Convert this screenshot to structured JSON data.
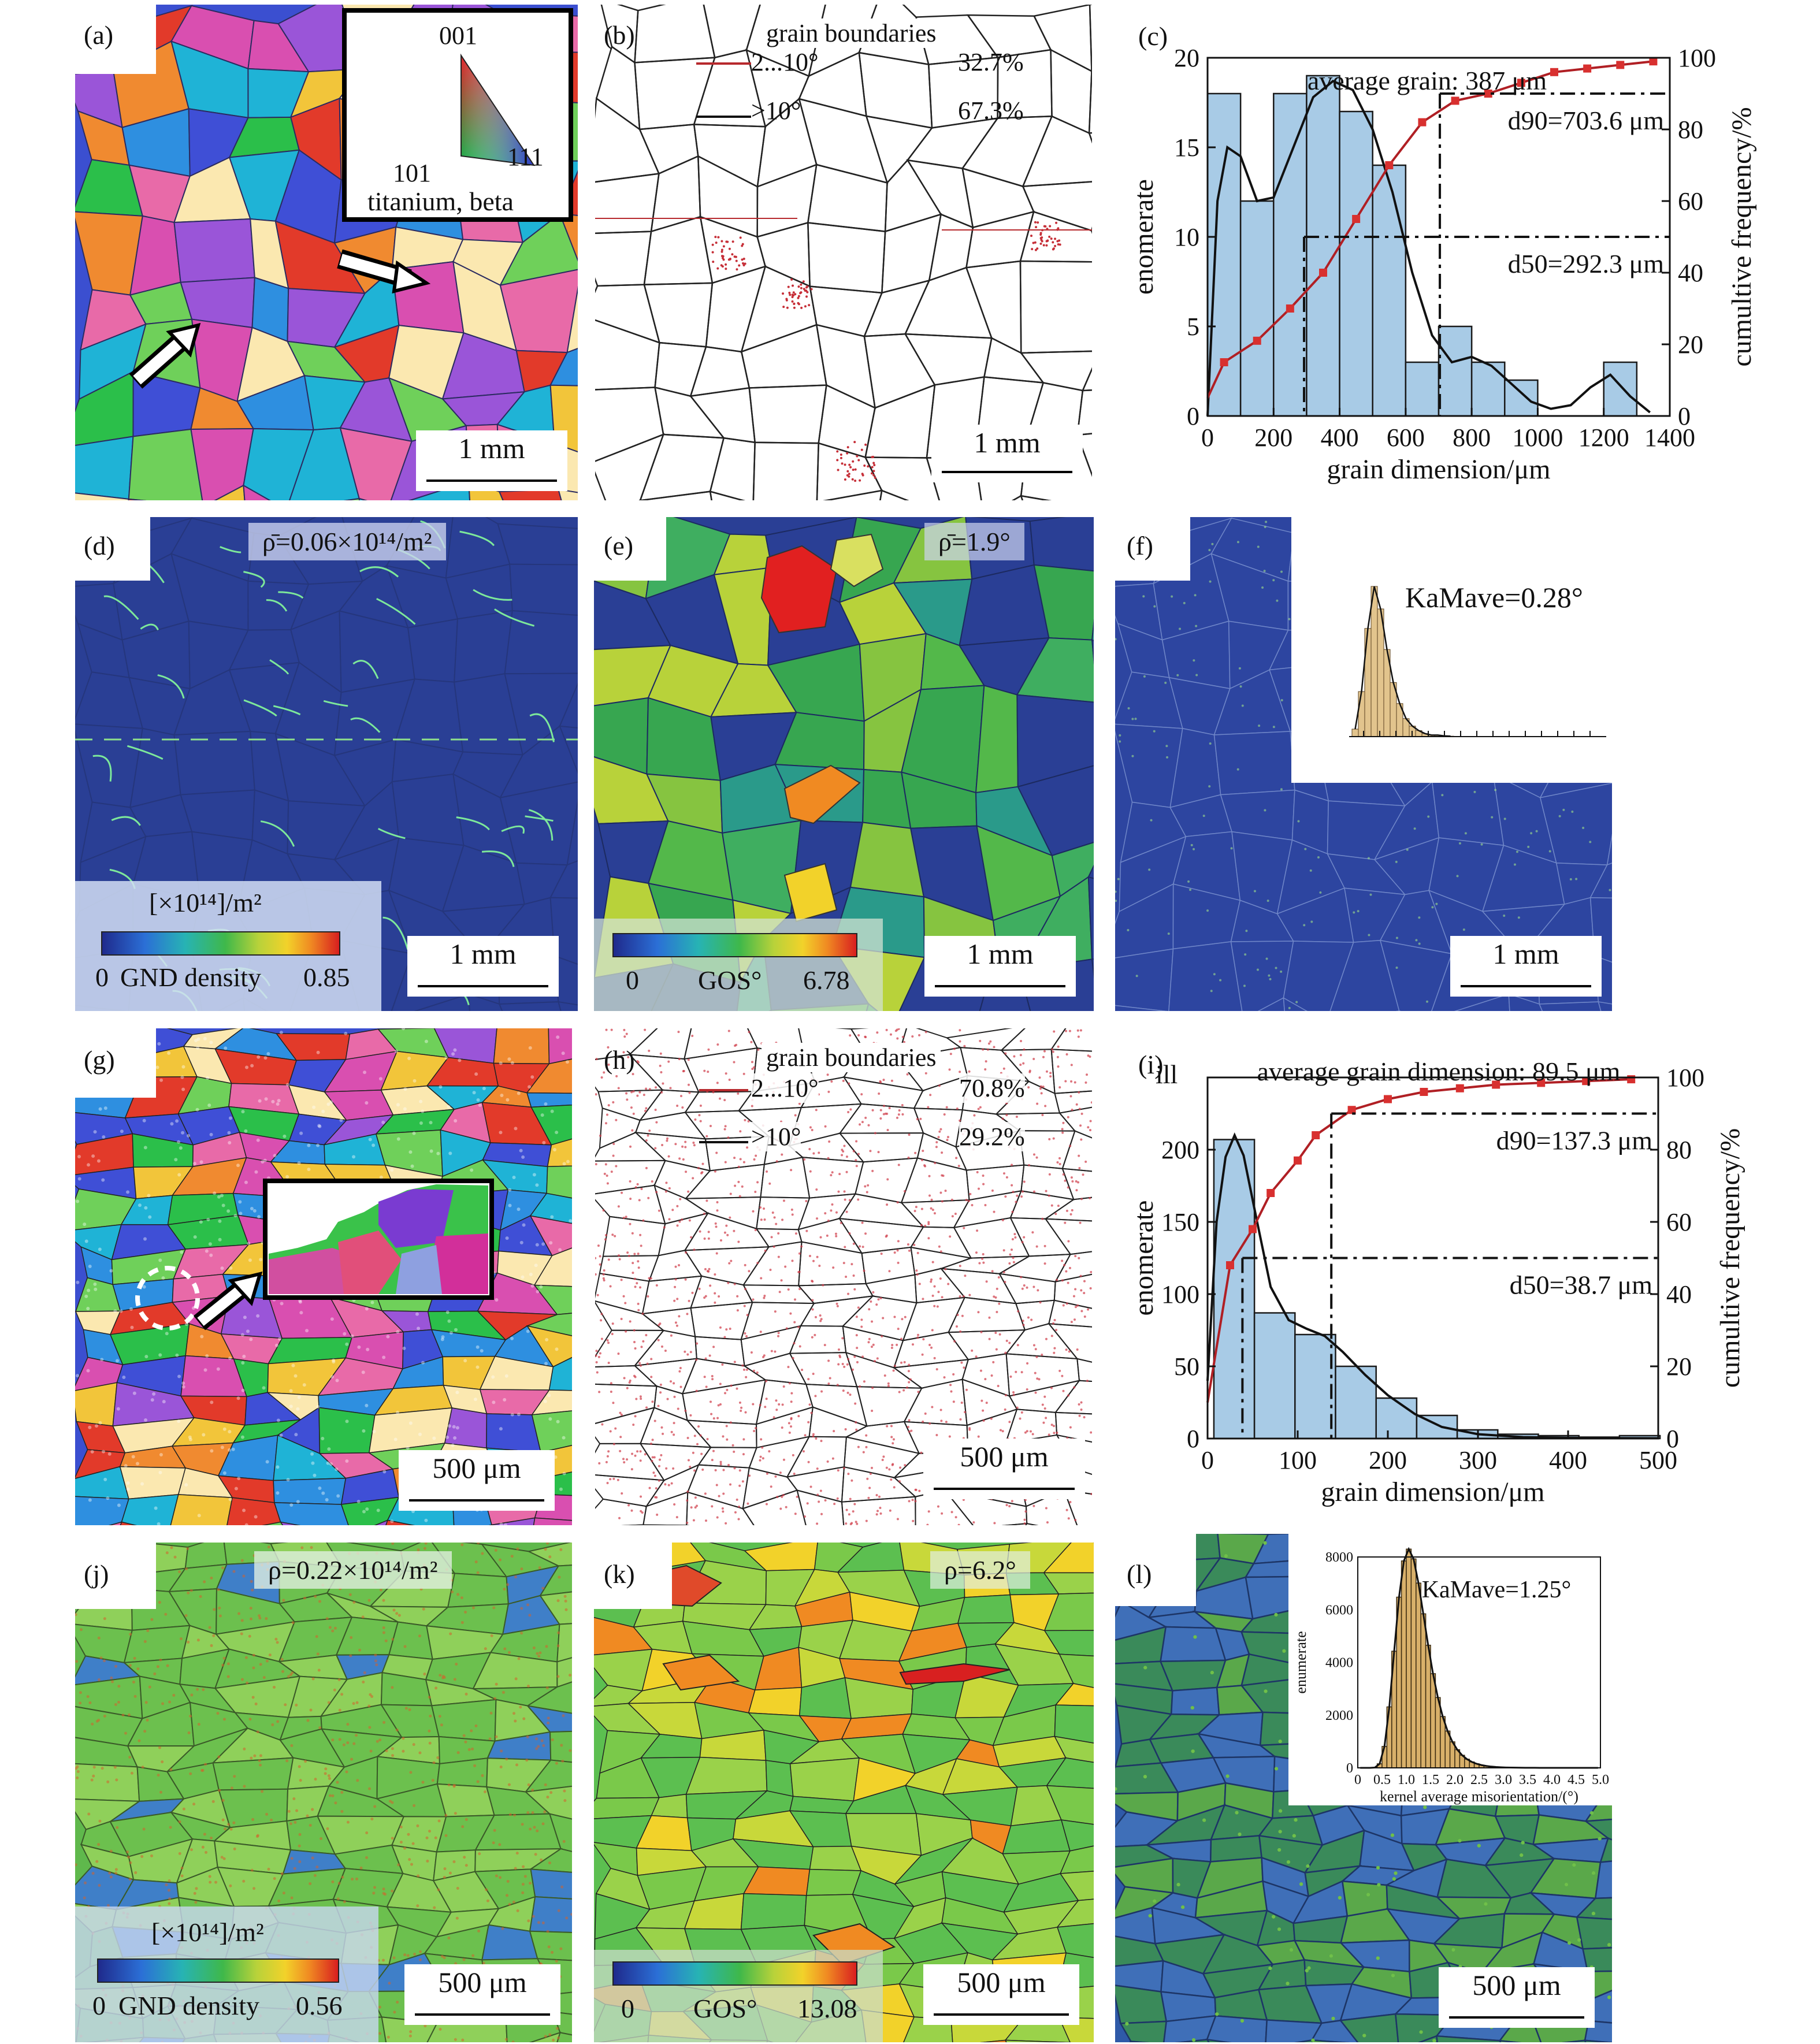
{
  "figure": {
    "panels": {
      "a": {
        "tag": "(a)",
        "inset": {
          "top": "001",
          "left": "101",
          "right": "111",
          "caption": "titanium, beta"
        },
        "scale": "1 mm"
      },
      "b": {
        "tag": "(b)",
        "title": "grain boundaries",
        "rows": [
          {
            "label": "2...10°",
            "value": "32.7%",
            "color": "#b7292d"
          },
          {
            "label": ">10°",
            "value": "67.3%",
            "color": "#111111"
          }
        ],
        "scale": "1 mm"
      },
      "c": {
        "tag": "(c)"
      },
      "d": {
        "tag": "(d)",
        "caption": "ρ̄=0.06×10¹⁴/m²",
        "cb_unit": "[×10¹⁴]/m²",
        "cb_min": "0",
        "cb_name": "GND density",
        "cb_max": "0.85",
        "scale": "1 mm"
      },
      "e": {
        "tag": "(e)",
        "caption": "ρ̄=1.9°",
        "cb_min": "0",
        "cb_name": "GOS°",
        "cb_max": "6.78",
        "scale": "1 mm"
      },
      "f": {
        "tag": "(f)",
        "caption": "KaMave=0.28°",
        "scale": "1 mm"
      },
      "g": {
        "tag": "(g)",
        "scale": "500 μm"
      },
      "h": {
        "tag": "(h)",
        "title": "grain boundaries",
        "rows": [
          {
            "label": "2...10°",
            "value": "70.8%",
            "color": "#b7292d"
          },
          {
            "label": ">10°",
            "value": "29.2%",
            "color": "#111111"
          }
        ],
        "scale": "500 μm"
      },
      "i": {
        "tag": "(i)"
      },
      "j": {
        "tag": "(j)",
        "caption": "ρ=0.22×10¹⁴/m²",
        "cb_unit": "[×10¹⁴]/m²",
        "cb_min": "0",
        "cb_name": "GND density",
        "cb_max": "0.56",
        "scale": "500 μm"
      },
      "k": {
        "tag": "(k)",
        "caption": "ρ=6.2°",
        "cb_min": "0",
        "cb_name": "GOS°",
        "cb_max": "13.08",
        "scale": "500 μm"
      },
      "l": {
        "tag": "(l)",
        "scale": "500 μm"
      }
    }
  },
  "chart_data": [
    {
      "id": "c",
      "type": "bar",
      "annotation": "average grain: 387 μm",
      "xlabel": "grain dimension/μm",
      "ylabel": "enomerate",
      "y2label": "cumultive frequency/%",
      "xlim": [
        0,
        1400
      ],
      "ylim": [
        0,
        20
      ],
      "y2lim": [
        0,
        100
      ],
      "xticks": [
        0,
        200,
        400,
        600,
        800,
        1000,
        1200,
        1400
      ],
      "yticks": [
        0,
        5,
        10,
        15,
        20
      ],
      "y2ticks": [
        0,
        20,
        40,
        60,
        80,
        100
      ],
      "bin_width": 100,
      "bins": [
        0,
        100,
        200,
        300,
        400,
        500,
        600,
        700,
        800,
        900,
        1000,
        1100,
        1200,
        1300
      ],
      "counts": [
        18,
        12,
        18,
        19,
        17,
        14,
        3,
        5,
        3,
        2,
        0,
        0,
        3,
        0
      ],
      "cumulative": {
        "x": [
          50,
          150,
          250,
          350,
          450,
          550,
          650,
          750,
          850,
          950,
          1050,
          1150,
          1250,
          1350
        ],
        "y": [
          15,
          21,
          30,
          40,
          55,
          70,
          82,
          88,
          90,
          93,
          96,
          97,
          98,
          99
        ]
      },
      "density_curve": {
        "x": [
          0,
          30,
          60,
          100,
          150,
          200,
          260,
          320,
          380,
          440,
          500,
          560,
          620,
          680,
          740,
          800,
          860,
          920,
          980,
          1040,
          1100,
          1160,
          1220,
          1280,
          1340
        ],
        "y": [
          0,
          12,
          15,
          14.5,
          12,
          12.2,
          15,
          17.8,
          18.7,
          18.2,
          16,
          12.5,
          8,
          4.5,
          3,
          3.3,
          2.8,
          1.8,
          0.8,
          0.4,
          0.6,
          1.6,
          2.3,
          1.1,
          0.2
        ]
      },
      "d50": {
        "label": "d50=292.3 μm",
        "x": 292.3,
        "percent": 50
      },
      "d90": {
        "label": "d90=703.6 μm",
        "x": 703.6,
        "percent": 90
      },
      "colors": {
        "bar": "#a8cbe6",
        "bar_edge": "#1a1a1a",
        "cum_line": "#b01f24",
        "points": "#d8302f",
        "curve": "#111111"
      }
    },
    {
      "id": "f-inset",
      "type": "bar",
      "annotation": "",
      "bins": [
        0.05,
        0.1,
        0.15,
        0.2,
        0.25,
        0.3,
        0.35,
        0.4,
        0.45,
        0.5,
        0.55,
        0.6,
        0.65,
        0.7,
        0.75,
        0.8
      ],
      "counts": [
        5,
        30,
        72,
        100,
        85,
        58,
        36,
        22,
        12,
        7,
        4,
        2,
        1,
        1,
        0.5,
        0.3
      ],
      "colors": {
        "bar": "#e2c48d",
        "curve": "#111111"
      }
    },
    {
      "id": "i",
      "type": "bar",
      "annotation": "average grain dimension: 89.5 μm",
      "extra_label": "ill",
      "xlabel": "grain dimension/μm",
      "ylabel": "enomerate",
      "y2label": "cumultive frequency/%",
      "xlim": [
        0,
        500
      ],
      "ylim": [
        0,
        250
      ],
      "y2lim": [
        0,
        100
      ],
      "xticks": [
        0,
        100,
        200,
        300,
        400,
        500
      ],
      "yticks": [
        0,
        50,
        100,
        150,
        200
      ],
      "y2ticks": [
        0,
        20,
        40,
        60,
        80,
        100
      ],
      "bin_width": 45,
      "bins": [
        7,
        52,
        97,
        142,
        187,
        232,
        277,
        322,
        367,
        412,
        457
      ],
      "counts": [
        207,
        87,
        72,
        50,
        28,
        16,
        6,
        3,
        2,
        1,
        2
      ],
      "cumulative": {
        "x": [
          25,
          50,
          70,
          100,
          120,
          160,
          200,
          240,
          280,
          320,
          370,
          420,
          470
        ],
        "y": [
          48,
          58,
          68,
          77,
          84,
          91,
          94,
          96,
          97,
          98,
          98.5,
          99,
          99.5
        ]
      },
      "density_curve": {
        "x": [
          0,
          10,
          20,
          30,
          40,
          55,
          70,
          90,
          110,
          130,
          150,
          175,
          200,
          230,
          260,
          300,
          350,
          400,
          450,
          500
        ],
        "y": [
          40,
          150,
          195,
          210,
          196,
          150,
          105,
          82,
          76,
          71,
          60,
          44,
          30,
          17,
          8,
          3,
          1,
          0.5,
          0.3,
          0.2
        ]
      },
      "d50": {
        "label": "d50=38.7 μm",
        "x": 38.7,
        "percent": 50
      },
      "d90": {
        "label": "d90=137.3 μm",
        "x": 137.3,
        "percent": 90
      },
      "colors": {
        "bar": "#a8cbe6",
        "bar_edge": "#1a1a1a",
        "cum_line": "#b01f24",
        "points": "#d8302f",
        "curve": "#111111"
      }
    },
    {
      "id": "l-inset",
      "type": "bar",
      "annotation": "KaMave=1.25°",
      "xlabel": "kernel average misorientation/(°)",
      "ylabel": "enumerate",
      "xlim": [
        0,
        5
      ],
      "ylim": [
        0,
        8000
      ],
      "xticks": [
        "0",
        "0.5",
        "1.0",
        "1.5",
        "2.0",
        "2.5",
        "3.0",
        "3.5",
        "4.0",
        "4.5",
        "5.0"
      ],
      "yticks": [
        0,
        2000,
        4000,
        6000,
        8000
      ],
      "bin_width": 0.1,
      "peak": {
        "x": 1.05,
        "y": 8300
      },
      "colors": {
        "bar": "#d8b06a",
        "bar_edge": "#3a2a10",
        "curve": "#111111"
      }
    }
  ]
}
